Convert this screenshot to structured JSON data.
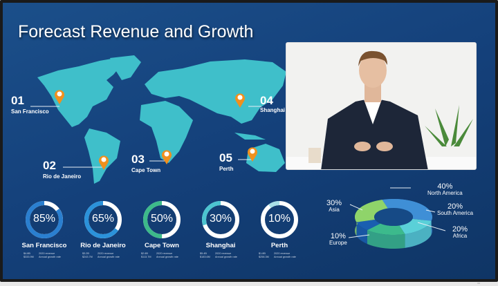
{
  "slide": {
    "title": "Forecast Revenue and Growth"
  },
  "map": {
    "land_color": "#3fbfca",
    "pin_color": "#f0901e",
    "markers": [
      {
        "num": "01",
        "city": "San Francisco"
      },
      {
        "num": "02",
        "city": "Rio de Janeiro"
      },
      {
        "num": "03",
        "city": "Cape Town"
      },
      {
        "num": "04",
        "city": "Shanghai"
      },
      {
        "num": "05",
        "city": "Perth"
      }
    ]
  },
  "video": {
    "subject": "presenter-video-feed"
  },
  "rings": [
    {
      "city": "San Francisco",
      "pct_label": "85%",
      "value": 85,
      "color": "#2a7fd0",
      "revenue": "$4.8B",
      "revenue_label": "2020 revenue",
      "growth": "$333.9M",
      "growth_label": "Annual growth rate"
    },
    {
      "city": "Rio de Janeiro",
      "pct_label": "65%",
      "value": 65,
      "color": "#2b92da",
      "revenue": "$3.2B",
      "revenue_label": "2020 revenue",
      "growth": "$243.7M",
      "growth_label": "Annual growth rate"
    },
    {
      "city": "Cape Town",
      "pct_label": "50%",
      "value": 50,
      "color": "#3dba8a",
      "revenue": "$2.6B",
      "revenue_label": "2020 revenue",
      "growth": "$113.7M",
      "growth_label": "Annual growth rate"
    },
    {
      "city": "Shanghai",
      "pct_label": "30%",
      "value": 30,
      "color": "#4cc4d0",
      "revenue": "$5.4B",
      "revenue_label": "2020 revenue",
      "growth": "$183.6M",
      "growth_label": "Annual growth rate"
    },
    {
      "city": "Perth",
      "pct_label": "10%",
      "value": 10,
      "color": "#a8e0e8",
      "revenue": "$1.8B",
      "revenue_label": "2020 revenue",
      "growth": "$258.3M",
      "growth_label": "Annual growth rate"
    }
  ],
  "chart_data": {
    "type": "pie",
    "style": "3d-donut",
    "categories": [
      "North America",
      "South America",
      "Africa",
      "Europe",
      "Asia"
    ],
    "values": [
      40,
      20,
      20,
      10,
      30
    ],
    "labels": [
      "40%",
      "20%",
      "20%",
      "10%",
      "30%"
    ],
    "colors": [
      "#3f8fd6",
      "#5ad0d8",
      "#3cba8c",
      "#1a5fb0",
      "#8fd46a"
    ]
  }
}
